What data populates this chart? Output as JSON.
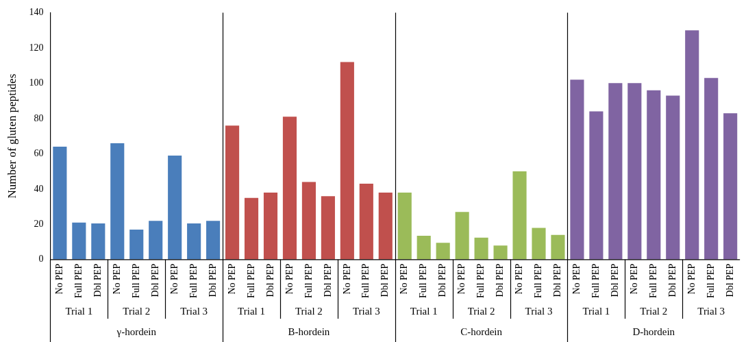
{
  "chart_data": {
    "type": "bar",
    "ylabel": "Number of gluten peptides",
    "categories": [
      "No PEP",
      "Full PEP",
      "Dbl PEP",
      "No PEP",
      "Full PEP",
      "Dbl PEP",
      "No PEP",
      "Full PEP",
      "Dbl PEP",
      "No PEP",
      "Full PEP",
      "Dbl PEP",
      "No PEP",
      "Full PEP",
      "Dbl PEP",
      "No PEP",
      "Full PEP",
      "Dbl PEP",
      "No PEP",
      "Full PEP",
      "Dbl PEP",
      "No PEP",
      "Full PEP",
      "Dbl PEP",
      "No PEP",
      "Full PEP",
      "Dbl PEP",
      "No PEP",
      "Full PEP",
      "Dbl PEP",
      "No PEP",
      "Full PEP",
      "Dbl PEP",
      "No PEP",
      "Full PEP",
      "Dbl PEP"
    ],
    "values": [
      64,
      21,
      20.5,
      66,
      17,
      22,
      59,
      20.5,
      22,
      76,
      35,
      38,
      81,
      44,
      36,
      112,
      43,
      38,
      38,
      13.5,
      9.5,
      27,
      12.5,
      8,
      50,
      18,
      14,
      102,
      84,
      100,
      100,
      96,
      93,
      130,
      103,
      83
    ],
    "colors": [
      "#4a7ebb",
      "#4a7ebb",
      "#4a7ebb",
      "#4a7ebb",
      "#4a7ebb",
      "#4a7ebb",
      "#4a7ebb",
      "#4a7ebb",
      "#4a7ebb",
      "#c0504d",
      "#c0504d",
      "#c0504d",
      "#c0504d",
      "#c0504d",
      "#c0504d",
      "#c0504d",
      "#c0504d",
      "#c0504d",
      "#9bbb59",
      "#9bbb59",
      "#9bbb59",
      "#9bbb59",
      "#9bbb59",
      "#9bbb59",
      "#9bbb59",
      "#9bbb59",
      "#9bbb59",
      "#8064a2",
      "#8064a2",
      "#8064a2",
      "#8064a2",
      "#8064a2",
      "#8064a2",
      "#8064a2",
      "#8064a2",
      "#8064a2"
    ],
    "ylim": [
      0,
      140
    ],
    "yticks": [
      0,
      20,
      40,
      60,
      80,
      100,
      120,
      140
    ],
    "grid": false,
    "legend": false,
    "annotations": [
      "Trial 1",
      "Trial 2",
      "Trial 3",
      "Trial 1",
      "Trial 2",
      "Trial 3",
      "Trial 1",
      "Trial 2",
      "Trial 3",
      "Trial 1",
      "Trial 2",
      "Trial 3",
      "γ-hordein",
      "B-hordein",
      "C-hordein",
      "D-hordein"
    ]
  }
}
